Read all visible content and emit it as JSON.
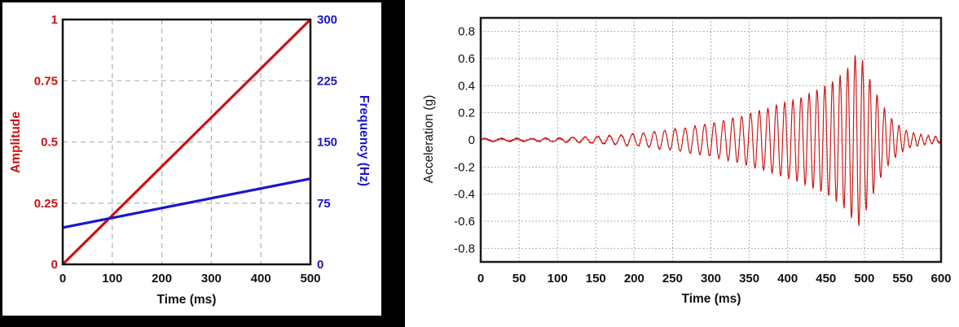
{
  "page": {
    "background": "#ffffff"
  },
  "colors": {
    "red": "#cc1111",
    "blue": "#1a15cc",
    "black": "#111111",
    "grid_left": "#b5b5b5",
    "grid_right": "#999999",
    "waveform_red": "#cc1a1a"
  },
  "chart_data": [
    {
      "type": "line",
      "title": "",
      "xlabel": "Time (ms)",
      "ylabel_left": "Amplitude",
      "ylabel_right": "Frequency (Hz)",
      "xlim": [
        0,
        500
      ],
      "ylim_left": [
        0,
        1
      ],
      "ylim_right": [
        0,
        300
      ],
      "x_ticks": {
        "values": [
          0,
          100,
          200,
          300,
          400,
          500
        ],
        "labels": [
          "0",
          "100",
          "200",
          "300",
          "400",
          "500"
        ]
      },
      "y_ticks_left": {
        "values": [
          0,
          0.25,
          0.5,
          0.75,
          1
        ],
        "labels": [
          "0",
          "0.25",
          "0.5",
          "0.75",
          "1"
        ]
      },
      "y_ticks_right": {
        "values": [
          0,
          75,
          150,
          225,
          300
        ],
        "labels": [
          "0",
          "75",
          "150",
          "225",
          "300"
        ]
      },
      "grid": "dashed",
      "legend": "none",
      "series": [
        {
          "name": "Amplitude",
          "axis": "left",
          "color": "#cc1111",
          "x": [
            0,
            500
          ],
          "y": [
            0,
            1
          ]
        },
        {
          "name": "Frequency (Hz)",
          "axis": "right",
          "color": "#1a15cc",
          "x": [
            0,
            500
          ],
          "y": [
            45,
            105
          ]
        }
      ]
    },
    {
      "type": "line",
      "title": "",
      "xlabel": "Time (ms)",
      "ylabel": "Acceleration (g)",
      "xlim": [
        0,
        600
      ],
      "ylim": [
        -0.9,
        0.9
      ],
      "x_ticks": {
        "values": [
          0,
          50,
          100,
          150,
          200,
          250,
          300,
          350,
          400,
          450,
          500,
          550,
          600
        ],
        "labels": [
          "0",
          "50",
          "100",
          "150",
          "200",
          "250",
          "300",
          "350",
          "400",
          "450",
          "500",
          "550",
          "600"
        ]
      },
      "y_ticks": {
        "values": [
          0.8,
          0.6,
          0.4,
          0.2,
          0,
          -0.2,
          -0.4,
          -0.6,
          -0.8
        ],
        "labels": [
          "0.8",
          "0.6",
          "0.4",
          "0.2",
          "0",
          "-0.2",
          "-0.4",
          "-0.6",
          "-0.8"
        ]
      },
      "grid": "dotted",
      "legend": "none",
      "series": [
        {
          "name": "Acceleration",
          "color": "#cc1a1a",
          "signal": {
            "kind": "chirp",
            "freq_start_hz": 45,
            "freq_end_hz": 105,
            "sweep_end_ms": 500,
            "peak_g": 0.6,
            "trough_g": -0.65,
            "peak_time_ms": 490,
            "noise_g": 0.006,
            "sample_step_ms": 0.4,
            "envelope_g": [
              [
                0,
                0.01
              ],
              [
                60,
                0.01
              ],
              [
                100,
                0.013
              ],
              [
                140,
                0.022
              ],
              [
                180,
                0.035
              ],
              [
                220,
                0.055
              ],
              [
                260,
                0.085
              ],
              [
                300,
                0.12
              ],
              [
                340,
                0.175
              ],
              [
                380,
                0.245
              ],
              [
                420,
                0.32
              ],
              [
                450,
                0.4
              ],
              [
                470,
                0.48
              ],
              [
                480,
                0.54
              ],
              [
                487,
                0.62
              ],
              [
                494,
                0.63
              ],
              [
                500,
                0.55
              ],
              [
                508,
                0.44
              ],
              [
                516,
                0.34
              ],
              [
                524,
                0.25
              ],
              [
                532,
                0.18
              ],
              [
                540,
                0.13
              ],
              [
                550,
                0.085
              ],
              [
                560,
                0.055
              ],
              [
                575,
                0.038
              ],
              [
                590,
                0.025
              ],
              [
                600,
                0.02
              ]
            ]
          }
        }
      ]
    }
  ]
}
